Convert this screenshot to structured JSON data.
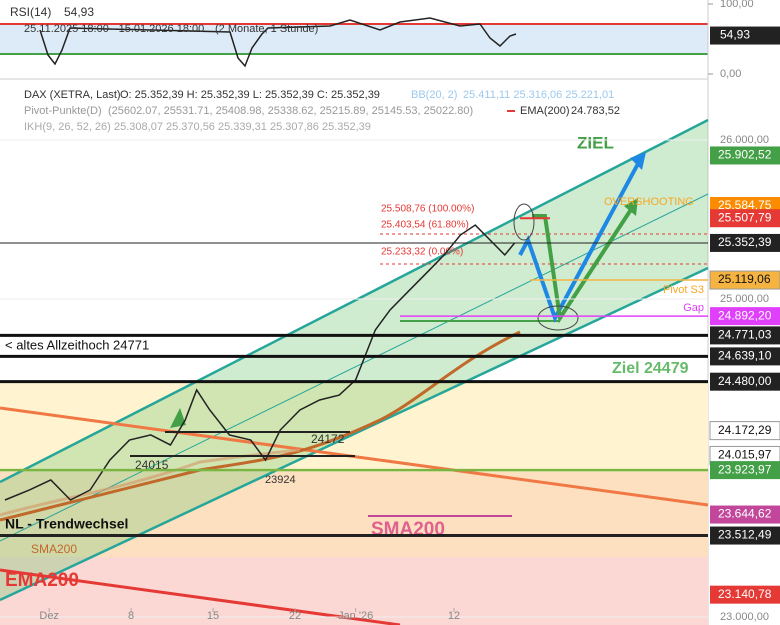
{
  "chart_data": {
    "type": "line",
    "rsi": {
      "title": "RSI(14)",
      "value_label": "54,93",
      "range": "25.11.2025 18:00 - 15.01.2026 18:00",
      "period": "(2 Monate, 1 Stunde)",
      "ylim": [
        0,
        100
      ],
      "yticks": [
        {
          "value": 100,
          "label": "100,00"
        },
        {
          "value": 0,
          "label": "0,00"
        }
      ],
      "last": {
        "value": 54.93,
        "label": "54,93"
      }
    },
    "legend": {
      "instrument": "DAX (XETRA, Last)",
      "ohlc": "O: 25.352,39  H: 25.352,39  L: 25.352,39  C: 25.352,39",
      "bb": "BB(20, 2)",
      "bb_values": "25.411,11  25.316,06  25.221,01",
      "pivot": "Pivot-Punkte(D)",
      "pivot_values": "(25602.07, 25531.71, 25408.98, 25338.62, 25215.89, 25145.53, 25022.80)",
      "ema": "EMA(200)",
      "ema_value": "24.783,52",
      "ikh": "IKH(9, 26, 52, 26)",
      "ikh_values": "25.308,07  25.370,56  25.339,31  25.307,86  25.352,39"
    },
    "x": [
      -2.7,
      -1.2,
      0.1,
      1.3,
      2.5,
      3.7,
      4.9,
      6.2,
      7.4,
      8.3,
      9.0,
      9.8,
      11.0,
      12.3,
      13.2,
      14.1,
      15.3,
      16.5,
      17.7,
      18.7,
      19.3,
      19.9,
      20.8,
      22.0,
      23.2,
      24.1,
      25.1,
      26.0,
      26.9,
      27.8,
      28.4
    ],
    "series": [
      {
        "name": "DAX",
        "color": "#222222",
        "values": [
          23736,
          23799,
          23862,
          23736,
          23799,
          23987,
          24113,
          24145,
          24082,
          24239,
          24428,
          24302,
          24145,
          24113,
          23987,
          24176,
          24302,
          24365,
          24396,
          24491,
          24648,
          24805,
          24931,
          25057,
          25182,
          25277,
          25403,
          25465,
          25371,
          25277,
          25352
        ]
      }
    ],
    "xlim": [
      -3,
      40.2
    ],
    "xticks": [
      {
        "value": 0,
        "label": "Dez"
      },
      {
        "value": 5,
        "label": "8"
      },
      {
        "value": 10,
        "label": "15"
      },
      {
        "value": 15,
        "label": "22"
      },
      {
        "value": 18.7,
        "label": "Jan '26"
      },
      {
        "value": 24.7,
        "label": "12"
      }
    ],
    "ylim": [
      22950,
      26377
    ],
    "yticks": [
      {
        "value": 26000,
        "label": "26.000,00"
      },
      {
        "value": 25000,
        "label": "25.000,00"
      },
      {
        "value": 23000,
        "label": "23.000,00"
      }
    ],
    "price_labels": [
      {
        "value": 25902.52,
        "label": "25.902,52",
        "color": "#43a047"
      },
      {
        "value": 25584.75,
        "label": "25.584,75",
        "color": "#fb8c00"
      },
      {
        "value": 25507.79,
        "label": "25.507,79",
        "color": "#e53935"
      },
      {
        "value": 25352.39,
        "label": "25.352,39",
        "color": "#222222"
      },
      {
        "value": 25119.06,
        "label": "25.119,06",
        "color": "#f5b342"
      },
      {
        "value": 24892.2,
        "label": "24.892,20",
        "color": "#e040fb"
      },
      {
        "value": 24771.03,
        "label": "24.771,03",
        "color": "#222222"
      },
      {
        "value": 24639.1,
        "label": "24.639,10",
        "color": "#222222"
      },
      {
        "value": 24480.0,
        "label": "24.480,00",
        "color": "#222222"
      },
      {
        "value": 24172.29,
        "label": "24.172,29",
        "color": "#ffffff"
      },
      {
        "value": 24015.97,
        "label": "24.015,97",
        "color": "#ffffff"
      },
      {
        "value": 23923.97,
        "label": "23.923,97",
        "color": "#43a047"
      },
      {
        "value": 23644.62,
        "label": "23.644,62",
        "color": "#c2479b"
      },
      {
        "value": 23512.49,
        "label": "23.512,49",
        "color": "#222222"
      },
      {
        "value": 23140.78,
        "label": "23.140,78",
        "color": "#e53935"
      }
    ],
    "annotations": {
      "ziel": "ZIEL",
      "overshooting": "OVERSHOOTING",
      "fib100": "25.508,76 (100.00%)",
      "fib618": "25.403,54 (61.80%)",
      "fib0": "25.233,32 (0.00%)",
      "pivot_s3": "Pivot S3",
      "gap": "Gap",
      "ath": "< altes Allzeithoch 24771",
      "ziel2": "Ziel  24479",
      "l24172": "24172",
      "l24015": "24015",
      "l23924": "23924",
      "nl": "NL - Trendwechsel",
      "sma_big": "SMA200",
      "sma_small": "SMA200",
      "ema": "EMA200"
    }
  }
}
